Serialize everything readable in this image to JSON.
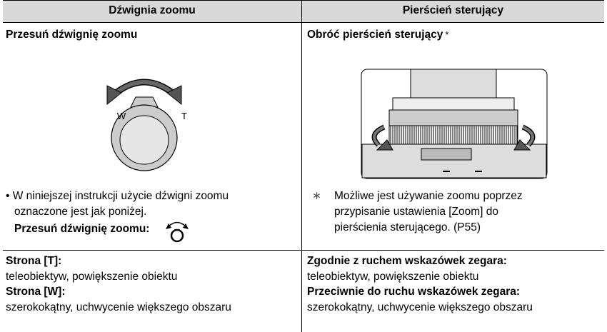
{
  "header": {
    "left": "Dźwignia zoomu",
    "right": "Pierścień sterujący"
  },
  "left": {
    "title": "Przesuń dźwignię zoomu",
    "lever_labels": {
      "w": "W",
      "t": "T"
    },
    "note_lines": [
      "• W niniejszej instrukcji użycie dźwigni zoomu",
      "oznaczone jest jak poniżej."
    ],
    "note_bold": "Przesuń dźwignię zoomu:"
  },
  "right": {
    "title": "Obróć pierścień sterujący",
    "title_mark": "*",
    "footnote_marker": "∗",
    "footnote_lines": [
      "Możliwe jest używanie zoomu poprzez",
      "przypisanie ustawienia [Zoom] do",
      "pierścienia sterującego. (P55)"
    ]
  },
  "bottom_left": {
    "lines": [
      {
        "text": "Strona [T]:",
        "bold": true
      },
      {
        "text": "teleobiektyw, powiększenie obiektu",
        "bold": false
      },
      {
        "text": "Strona [W]:",
        "bold": true
      },
      {
        "text": "szerokokątny, uchwycenie większego obszaru",
        "bold": false
      }
    ]
  },
  "bottom_right": {
    "lines": [
      {
        "text": "Zgodnie z ruchem wskazówek zegara:",
        "bold": true
      },
      {
        "text": "teleobiektyw, powiększenie obiektu",
        "bold": false
      },
      {
        "text": "Przeciwnie do ruchu wskazówek zegara:",
        "bold": true
      },
      {
        "text": "szerokokątny, uchwycenie większego obszaru",
        "bold": false
      }
    ]
  }
}
